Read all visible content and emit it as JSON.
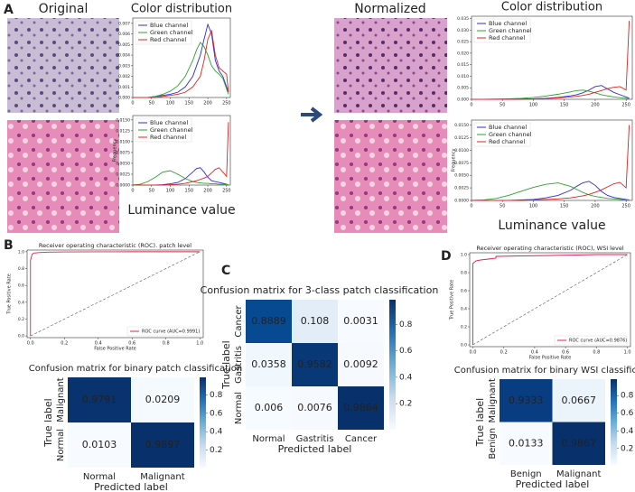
{
  "panels": {
    "letters": [
      "A",
      "B",
      "C",
      "D"
    ],
    "image_titles": [
      "Original",
      "Normalized"
    ]
  },
  "chart_data": [
    {
      "type": "line",
      "title": "Color distribution",
      "legend": "upper left",
      "x": [
        0,
        20,
        40,
        60,
        80,
        100,
        120,
        140,
        160,
        170,
        180,
        190,
        200,
        210,
        220,
        230,
        240,
        250,
        255
      ],
      "xlim": [
        0,
        260
      ],
      "xticks": [
        0,
        50,
        100,
        150,
        200,
        250
      ],
      "ylim": [
        0,
        0.0075
      ],
      "yticks": [
        {
          "value": 0,
          "label": "0.000"
        },
        {
          "value": 0.001,
          "label": "0.001"
        },
        {
          "value": 0.002,
          "label": "0.002"
        },
        {
          "value": 0.003,
          "label": "0.003"
        },
        {
          "value": 0.004,
          "label": "0.004"
        },
        {
          "value": 0.005,
          "label": "0.005"
        },
        {
          "value": 0.006,
          "label": "0.006"
        },
        {
          "value": 0.007,
          "label": "0.007"
        }
      ],
      "series": [
        {
          "name": "Blue channel",
          "color": "#2b2bd9",
          "values": [
            0,
            0,
            0,
            0.0001,
            0.0002,
            0.0003,
            0.0005,
            0.001,
            0.002,
            0.003,
            0.004,
            0.0055,
            0.0069,
            0.006,
            0.0035,
            0.0025,
            0.002,
            0.001,
            0.0005
          ]
        },
        {
          "name": "Green channel",
          "color": "#2ca02c",
          "values": [
            0,
            0,
            0,
            0.0001,
            0.0003,
            0.0006,
            0.0011,
            0.002,
            0.0035,
            0.0045,
            0.0052,
            0.0048,
            0.004,
            0.003,
            0.0025,
            0.0022,
            0.0018,
            0.0008,
            0.0003
          ]
        },
        {
          "name": "Red channel",
          "color": "#e02020",
          "values": [
            0,
            0,
            0,
            0,
            0.0001,
            0.0002,
            0.0003,
            0.0005,
            0.001,
            0.0015,
            0.002,
            0.0035,
            0.0055,
            0.0063,
            0.004,
            0.0028,
            0.0025,
            0.0022,
            0.0005
          ]
        }
      ]
    },
    {
      "type": "line",
      "x_label": "Luminance value",
      "y_label": "Frequency",
      "legend": "upper left",
      "x": [
        0,
        20,
        40,
        60,
        80,
        100,
        120,
        140,
        160,
        170,
        180,
        190,
        200,
        210,
        220,
        230,
        240,
        250,
        255
      ],
      "xlim": [
        0,
        260
      ],
      "xticks": [
        0,
        50,
        100,
        150,
        200,
        250
      ],
      "ylim": [
        0,
        0.016
      ],
      "yticks": [
        {
          "value": 0,
          "label": "0.0000"
        },
        {
          "value": 0.0025,
          "label": "0.0025"
        },
        {
          "value": 0.005,
          "label": "0.0050"
        },
        {
          "value": 0.0075,
          "label": "0.0075"
        },
        {
          "value": 0.01,
          "label": "0.0100"
        },
        {
          "value": 0.0125,
          "label": "0.0125"
        },
        {
          "value": 0.015,
          "label": "0.0150"
        }
      ],
      "series": [
        {
          "name": "Blue channel",
          "color": "#2b2bd9",
          "values": [
            0,
            0,
            0,
            0,
            0.0001,
            0.0003,
            0.0006,
            0.0015,
            0.003,
            0.0038,
            0.004,
            0.003,
            0.0018,
            0.001,
            0.0008,
            0.0006,
            0.0004,
            0.0002,
            0
          ]
        },
        {
          "name": "Green channel",
          "color": "#2ca02c",
          "values": [
            0,
            0.0002,
            0.0008,
            0.0018,
            0.003,
            0.0033,
            0.0025,
            0.0015,
            0.0008,
            0.0006,
            0.0005,
            0.0004,
            0.0004,
            0.0003,
            0.0003,
            0.0002,
            0.0002,
            0.0001,
            0.0001
          ]
        },
        {
          "name": "Red channel",
          "color": "#e02020",
          "values": [
            0,
            0,
            0,
            0,
            0,
            0.0001,
            0.0002,
            0.0004,
            0.0008,
            0.001,
            0.0013,
            0.0016,
            0.002,
            0.0028,
            0.0036,
            0.004,
            0.003,
            0.002,
            0.0145
          ]
        }
      ]
    },
    {
      "type": "line",
      "title": "Color distribution",
      "legend": "upper left",
      "x": [
        0,
        20,
        40,
        60,
        80,
        100,
        120,
        140,
        160,
        170,
        180,
        190,
        200,
        210,
        220,
        230,
        240,
        250,
        255
      ],
      "xlim": [
        0,
        260
      ],
      "xticks": [
        0,
        50,
        100,
        150,
        200,
        250
      ],
      "ylim": [
        0,
        0.036
      ],
      "yticks": [
        {
          "value": 0,
          "label": "0.000"
        },
        {
          "value": 0.005,
          "label": "0.005"
        },
        {
          "value": 0.01,
          "label": "0.010"
        },
        {
          "value": 0.015,
          "label": "0.015"
        },
        {
          "value": 0.02,
          "label": "0.020"
        },
        {
          "value": 0.025,
          "label": "0.025"
        },
        {
          "value": 0.03,
          "label": "0.030"
        },
        {
          "value": 0.035,
          "label": "0.035"
        }
      ],
      "series": [
        {
          "name": "Blue channel",
          "color": "#2b2bd9",
          "values": [
            0,
            0,
            0,
            0,
            0.0001,
            0.0002,
            0.0004,
            0.0008,
            0.0015,
            0.002,
            0.0028,
            0.004,
            0.0055,
            0.006,
            0.0045,
            0.003,
            0.002,
            0.001,
            0.0005
          ]
        },
        {
          "name": "Green channel",
          "color": "#2ca02c",
          "values": [
            0,
            0,
            0.0001,
            0.0002,
            0.0004,
            0.0008,
            0.0014,
            0.0022,
            0.0032,
            0.0038,
            0.004,
            0.0035,
            0.0028,
            0.002,
            0.0015,
            0.001,
            0.0007,
            0.0004,
            0.0002
          ]
        },
        {
          "name": "Red channel",
          "color": "#e02020",
          "values": [
            0,
            0,
            0,
            0,
            0.0001,
            0.0002,
            0.0003,
            0.0006,
            0.001,
            0.0013,
            0.0017,
            0.0022,
            0.003,
            0.0038,
            0.0046,
            0.0052,
            0.0055,
            0.004,
            0.034
          ]
        }
      ]
    },
    {
      "type": "line",
      "x_label": "Luminance value",
      "y_label": "Frequency",
      "legend": "upper left",
      "x": [
        0,
        20,
        40,
        60,
        80,
        100,
        120,
        140,
        160,
        170,
        180,
        190,
        200,
        210,
        220,
        230,
        240,
        250,
        255
      ],
      "xlim": [
        0,
        260
      ],
      "xticks": [
        0,
        50,
        100,
        150,
        200,
        250
      ],
      "ylim": [
        0,
        0.016
      ],
      "yticks": [
        {
          "value": 0,
          "label": "0.0000"
        },
        {
          "value": 0.0025,
          "label": "0.0025"
        },
        {
          "value": 0.005,
          "label": "0.0050"
        },
        {
          "value": 0.0075,
          "label": "0.0075"
        },
        {
          "value": 0.01,
          "label": "0.0100"
        },
        {
          "value": 0.0125,
          "label": "0.0125"
        },
        {
          "value": 0.015,
          "label": "0.0150"
        }
      ],
      "series": [
        {
          "name": "Blue channel",
          "color": "#2b2bd9",
          "values": [
            0,
            0,
            0,
            0,
            0.0001,
            0.0002,
            0.0005,
            0.001,
            0.002,
            0.0028,
            0.0035,
            0.0038,
            0.003,
            0.0018,
            0.001,
            0.0006,
            0.0004,
            0.0002,
            0.0001
          ]
        },
        {
          "name": "Green channel",
          "color": "#2ca02c",
          "values": [
            0,
            0.0001,
            0.0004,
            0.001,
            0.0018,
            0.0026,
            0.0032,
            0.0035,
            0.0028,
            0.0022,
            0.0016,
            0.0011,
            0.0008,
            0.0006,
            0.0004,
            0.0003,
            0.0002,
            0.0001,
            0.0001
          ]
        },
        {
          "name": "Red channel",
          "color": "#e02020",
          "values": [
            0,
            0,
            0,
            0,
            0,
            0.0001,
            0.0002,
            0.0003,
            0.0005,
            0.0007,
            0.0009,
            0.0012,
            0.0016,
            0.0021,
            0.0027,
            0.0033,
            0.0036,
            0.0025,
            0.015
          ]
        }
      ]
    },
    {
      "type": "line",
      "title": "Receiver operating characteristic (ROC). patch level",
      "x_label": "False Positive Rate",
      "y_label": "True Positive Rate",
      "legend": "lower right",
      "diagonal": true,
      "x": [
        0,
        0,
        0.01,
        0.02,
        0.05,
        0.1,
        0.2,
        0.4,
        0.6,
        0.8,
        1.0
      ],
      "xlim": [
        -0.02,
        1.02
      ],
      "xticks": [
        {
          "value": 0,
          "label": "0.0"
        },
        {
          "value": 0.2,
          "label": "0.2"
        },
        {
          "value": 0.4,
          "label": "0.4"
        },
        {
          "value": 0.6,
          "label": "0.6"
        },
        {
          "value": 0.8,
          "label": "0.8"
        },
        {
          "value": 1,
          "label": "1.0"
        }
      ],
      "ylim": [
        -0.02,
        1.02
      ],
      "yticks": [
        {
          "value": 0,
          "label": "0.0"
        },
        {
          "value": 0.2,
          "label": "0.2"
        },
        {
          "value": 0.4,
          "label": "0.4"
        },
        {
          "value": 0.6,
          "label": "0.6"
        },
        {
          "value": 0.8,
          "label": "0.8"
        },
        {
          "value": 1,
          "label": "1.0"
        }
      ],
      "series": [
        {
          "name": "ROC curve (AUC=0.9991)",
          "color": "#e0204a",
          "values": [
            0,
            0.9,
            0.97,
            0.985,
            0.99,
            0.995,
            0.998,
            0.999,
            1,
            1,
            1
          ]
        }
      ]
    },
    {
      "type": "heatmap",
      "title": "Confusion matrix for binary patch classification",
      "x_label": "Predicted label",
      "y_label": "True label",
      "x_categories": [
        "Normal",
        "Malignant"
      ],
      "y_categories": [
        "Malignant",
        "Normal"
      ],
      "values": [
        [
          0.9791,
          0.0209
        ],
        [
          0.0103,
          0.9897
        ]
      ],
      "clim": [
        0.0103,
        0.9897
      ],
      "cticks": [
        0.2,
        0.4,
        0.6,
        0.8
      ]
    },
    {
      "type": "heatmap",
      "title": "Confusion matrix for 3-class patch classification",
      "x_label": "Predicted label",
      "y_label": "True label",
      "x_categories": [
        "Normal",
        "Gastritis",
        "Cancer"
      ],
      "y_categories": [
        "Cancer",
        "Gastritis",
        "Normal"
      ],
      "values": [
        [
          0.8889,
          0.108,
          0.0031
        ],
        [
          0.0358,
          0.9582,
          0.0092
        ],
        [
          0.006,
          0.0076,
          0.9864
        ]
      ],
      "clim": [
        0.0031,
        0.9864
      ],
      "cticks": [
        0.2,
        0.4,
        0.6,
        0.8
      ]
    },
    {
      "type": "line",
      "title": "Receiver operating characteristic (ROC), WSI level",
      "x_label": "False Positive Rate",
      "y_label": "True Positive Rate",
      "legend": "lower right",
      "diagonal": true,
      "x": [
        0,
        0,
        0.02,
        0.05,
        0.1,
        0.15,
        0.15,
        0.3,
        0.5,
        0.8,
        1.0
      ],
      "xlim": [
        -0.02,
        1.02
      ],
      "xticks": [
        {
          "value": 0,
          "label": "0.0"
        },
        {
          "value": 0.2,
          "label": "0.2"
        },
        {
          "value": 0.4,
          "label": "0.4"
        },
        {
          "value": 0.6,
          "label": "0.6"
        },
        {
          "value": 0.8,
          "label": "0.8"
        },
        {
          "value": 1,
          "label": "1.0"
        }
      ],
      "ylim": [
        -0.02,
        1.02
      ],
      "yticks": [
        {
          "value": 0,
          "label": "0.0"
        },
        {
          "value": 0.2,
          "label": "0.2"
        },
        {
          "value": 0.4,
          "label": "0.4"
        },
        {
          "value": 0.6,
          "label": "0.6"
        },
        {
          "value": 0.8,
          "label": "0.8"
        },
        {
          "value": 1,
          "label": "1.0"
        }
      ],
      "series": [
        {
          "name": "ROC curve (AUC=0.9876)",
          "color": "#e0204a",
          "values": [
            0,
            0.9,
            0.93,
            0.94,
            0.95,
            0.96,
            0.98,
            0.985,
            0.99,
            1,
            1
          ]
        }
      ]
    },
    {
      "type": "heatmap",
      "title": "Confusion matrix for binary WSI classification",
      "x_label": "Predicted label",
      "y_label": "True label",
      "x_categories": [
        "Benign",
        "Malignant"
      ],
      "y_categories": [
        "Malignant",
        "Benign"
      ],
      "values": [
        [
          0.9333,
          0.0667
        ],
        [
          0.0133,
          0.9867
        ]
      ],
      "clim": [
        0.0133,
        0.9867
      ],
      "cticks": [
        0.2,
        0.4,
        0.6,
        0.8
      ]
    }
  ]
}
